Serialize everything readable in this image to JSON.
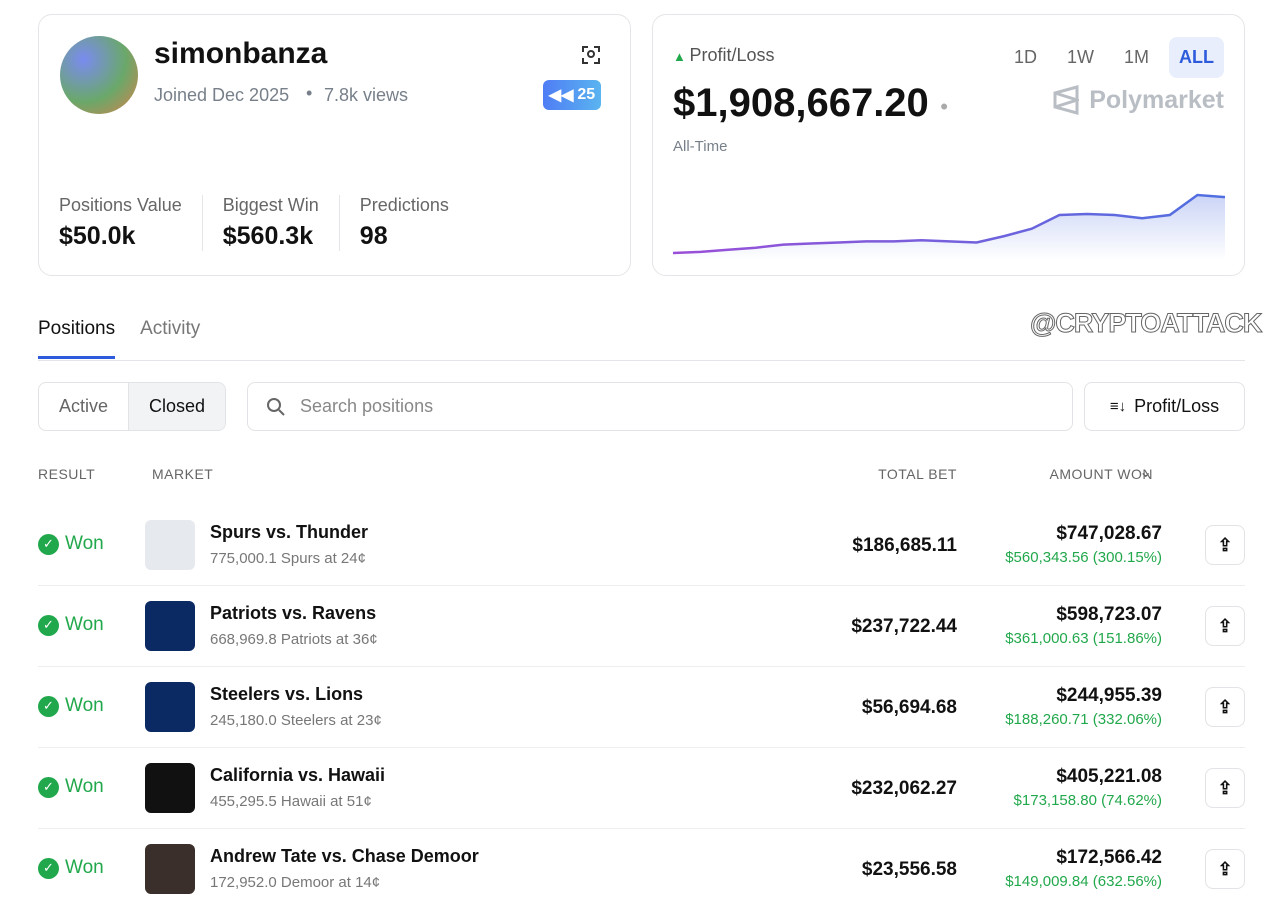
{
  "profile": {
    "username": "simonbanza",
    "joined": "Joined Dec 2025",
    "views": "7.8k views",
    "badge": "25",
    "stats": [
      {
        "label": "Positions Value",
        "value": "$50.0k"
      },
      {
        "label": "Biggest Win",
        "value": "$560.3k"
      },
      {
        "label": "Predictions",
        "value": "98"
      }
    ]
  },
  "pnl": {
    "label": "Profit/Loss",
    "amount": "$1,908,667.20",
    "period": "All-Time",
    "ranges": [
      "1D",
      "1W",
      "1M",
      "ALL"
    ],
    "selected_range": "ALL",
    "brand": "Polymarket",
    "chart": {
      "type": "area",
      "color": "#4f6fe0",
      "values": [
        0,
        36000,
        108000,
        180000,
        288000,
        324000,
        360000,
        396000,
        396000,
        432000,
        396000,
        360000,
        576000,
        828000,
        1296000,
        1332000,
        1296000,
        1188000,
        1296000,
        1980000,
        1908000
      ]
    }
  },
  "watermark": "@CRYPTOATTACK",
  "tabs": [
    "Positions",
    "Activity"
  ],
  "selected_tab": "Positions",
  "filters": [
    "Active",
    "Closed"
  ],
  "selected_filter": "Closed",
  "search_placeholder": "Search positions",
  "sort": "Profit/Loss",
  "table": {
    "headers": [
      "RESULT",
      "MARKET",
      "TOTAL BET",
      "AMOUNT WON"
    ],
    "rows": [
      {
        "result": "Won",
        "market": "Spurs vs. Thunder",
        "detail": "775,000.1 Spurs at 24¢",
        "total_bet": "$186,685.11",
        "amount_won": "$747,028.67",
        "profit": "$560,343.56 (300.15%)"
      },
      {
        "result": "Won",
        "market": "Patriots vs. Ravens",
        "detail": "668,969.8 Patriots at 36¢",
        "total_bet": "$237,722.44",
        "amount_won": "$598,723.07",
        "profit": "$361,000.63 (151.86%)"
      },
      {
        "result": "Won",
        "market": "Steelers vs. Lions",
        "detail": "245,180.0 Steelers at 23¢",
        "total_bet": "$56,694.68",
        "amount_won": "$244,955.39",
        "profit": "$188,260.71 (332.06%)"
      },
      {
        "result": "Won",
        "market": "California vs. Hawaii",
        "detail": "455,295.5 Hawaii at 51¢",
        "total_bet": "$232,062.27",
        "amount_won": "$405,221.08",
        "profit": "$173,158.80 (74.62%)"
      },
      {
        "result": "Won",
        "market": "Andrew Tate vs. Chase Demoor",
        "detail": "172,952.0 Demoor at 14¢",
        "total_bet": "$23,556.58",
        "amount_won": "$172,566.42",
        "profit": "$149,009.84 (632.56%)"
      }
    ]
  }
}
